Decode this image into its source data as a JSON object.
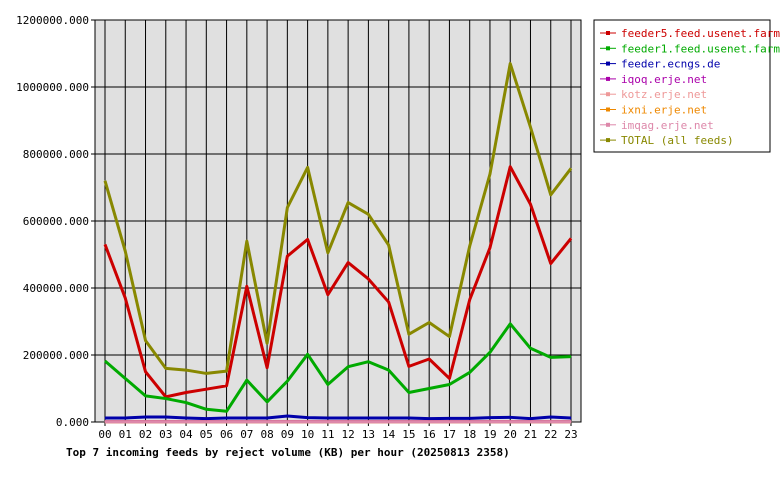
{
  "chart_data": {
    "type": "line",
    "title": "Top 7 incoming feeds by reject volume (KB) per hour (20250813 2358)",
    "categories": [
      "00",
      "01",
      "02",
      "03",
      "04",
      "05",
      "06",
      "07",
      "08",
      "09",
      "10",
      "11",
      "12",
      "13",
      "14",
      "15",
      "16",
      "17",
      "18",
      "19",
      "20",
      "21",
      "22",
      "23"
    ],
    "ylim": [
      0,
      1200000
    ],
    "yticks": [
      0,
      200000,
      400000,
      600000,
      800000,
      1000000,
      1200000
    ],
    "ytick_labels": [
      "0.000",
      "200000.000",
      "400000.000",
      "600000.000",
      "800000.000",
      "1000000.000",
      "1200000.000"
    ],
    "grid": true,
    "legend_position": "right",
    "background": "#e0e0e0",
    "series": [
      {
        "name": "feeder5.feed.usenet.farm",
        "color": "#cc0000",
        "values": [
          530000,
          370000,
          150000,
          75000,
          88000,
          98000,
          108000,
          405000,
          162000,
          495000,
          545000,
          380000,
          476000,
          427000,
          358000,
          166000,
          188000,
          130000,
          365000,
          520000,
          762000,
          650000,
          473000,
          548000
        ]
      },
      {
        "name": "feeder1.feed.usenet.farm",
        "color": "#00aa00",
        "values": [
          182000,
          130000,
          78000,
          70000,
          58000,
          38000,
          32000,
          125000,
          60000,
          122000,
          202000,
          112000,
          165000,
          180000,
          155000,
          88000,
          100000,
          112000,
          148000,
          208000,
          293000,
          220000,
          193000,
          195000
        ]
      },
      {
        "name": "feeder.ecngs.de",
        "color": "#0000aa",
        "values": [
          12000,
          12000,
          15000,
          15000,
          12000,
          10000,
          12000,
          12000,
          12000,
          18000,
          13000,
          12000,
          12000,
          12000,
          12000,
          12000,
          10000,
          11000,
          11000,
          13000,
          14000,
          10000,
          15000,
          12000
        ]
      },
      {
        "name": "iqoq.erje.net",
        "color": "#aa00aa",
        "values": [
          1000,
          1000,
          1000,
          1000,
          1000,
          1000,
          1000,
          1000,
          1000,
          1000,
          1000,
          1000,
          1000,
          1000,
          1000,
          1000,
          1000,
          1000,
          1000,
          1000,
          1000,
          1000,
          1000,
          1000
        ]
      },
      {
        "name": "kotz.erje.net",
        "color": "#ee9999",
        "values": [
          500,
          500,
          500,
          500,
          500,
          500,
          500,
          500,
          500,
          500,
          500,
          500,
          500,
          500,
          500,
          500,
          500,
          500,
          500,
          500,
          500,
          500,
          500,
          500
        ]
      },
      {
        "name": "ixni.erje.net",
        "color": "#ee8800",
        "values": [
          500,
          500,
          500,
          500,
          500,
          500,
          500,
          500,
          500,
          500,
          500,
          500,
          500,
          500,
          500,
          500,
          500,
          500,
          500,
          500,
          500,
          500,
          500,
          500
        ]
      },
      {
        "name": "imqag.erje.net",
        "color": "#dd88aa",
        "values": [
          300,
          300,
          300,
          300,
          300,
          300,
          300,
          300,
          300,
          300,
          300,
          300,
          300,
          300,
          300,
          300,
          300,
          300,
          300,
          300,
          300,
          300,
          300,
          300
        ]
      },
      {
        "name": "TOTAL (all feeds)",
        "color": "#888800",
        "values": [
          720000,
          510000,
          243000,
          160000,
          155000,
          145000,
          152000,
          540000,
          235000,
          640000,
          760000,
          505000,
          655000,
          620000,
          528000,
          262000,
          297000,
          255000,
          525000,
          740000,
          1070000,
          880000,
          678000,
          757000
        ]
      }
    ]
  }
}
